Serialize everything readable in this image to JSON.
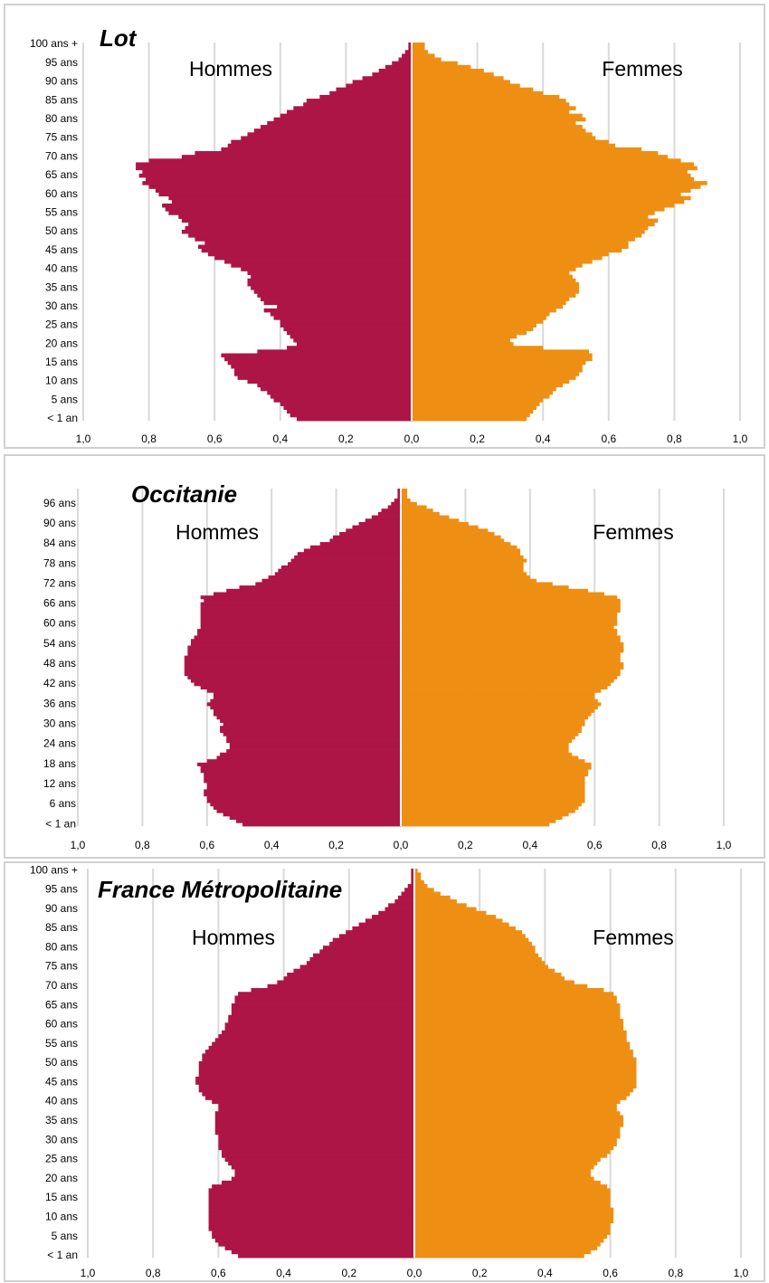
{
  "chart_data": [
    {
      "type": "pyramid",
      "title": "Lot",
      "categories": [
        "< 1 an",
        null,
        null,
        null,
        null,
        "5 ans",
        null,
        null,
        null,
        null,
        "10 ans",
        null,
        null,
        null,
        null,
        "15 ans",
        null,
        null,
        null,
        null,
        "20 ans",
        null,
        null,
        null,
        null,
        "25 ans",
        null,
        null,
        null,
        null,
        "30 ans",
        null,
        null,
        null,
        null,
        "35 ans",
        null,
        null,
        null,
        null,
        "40 ans",
        null,
        null,
        null,
        null,
        "45 ans",
        null,
        null,
        null,
        null,
        "50 ans",
        null,
        null,
        null,
        null,
        "55 ans",
        null,
        null,
        null,
        null,
        "60 ans",
        null,
        null,
        null,
        null,
        "65 ans",
        null,
        null,
        null,
        null,
        "70 ans",
        null,
        null,
        null,
        null,
        "75 ans",
        null,
        null,
        null,
        null,
        "80 ans",
        null,
        null,
        null,
        null,
        "85 ans",
        null,
        null,
        null,
        null,
        "90 ans",
        null,
        null,
        null,
        null,
        "95 ans",
        null,
        null,
        null,
        null,
        "100 ans +"
      ],
      "series": [
        {
          "name": "Hommes",
          "color": "#ad1547",
          "values": [
            0.35,
            0.37,
            0.38,
            0.39,
            0.4,
            0.42,
            0.43,
            0.44,
            0.46,
            0.47,
            0.5,
            0.53,
            0.54,
            0.54,
            0.55,
            0.56,
            0.57,
            0.58,
            0.47,
            0.38,
            0.35,
            0.36,
            0.37,
            0.38,
            0.39,
            0.4,
            0.4,
            0.42,
            0.43,
            0.45,
            0.41,
            0.45,
            0.46,
            0.47,
            0.48,
            0.49,
            0.5,
            0.5,
            0.49,
            0.5,
            0.52,
            0.55,
            0.57,
            0.6,
            0.62,
            0.64,
            0.65,
            0.63,
            0.66,
            0.68,
            0.7,
            0.69,
            0.68,
            0.7,
            0.71,
            0.74,
            0.75,
            0.76,
            0.73,
            0.74,
            0.77,
            0.78,
            0.8,
            0.82,
            0.81,
            0.83,
            0.82,
            0.84,
            0.84,
            0.8,
            0.7,
            0.66,
            0.58,
            0.56,
            0.55,
            0.52,
            0.5,
            0.48,
            0.46,
            0.44,
            0.42,
            0.4,
            0.38,
            0.36,
            0.33,
            0.32,
            0.28,
            0.25,
            0.23,
            0.2,
            0.18,
            0.15,
            0.12,
            0.1,
            0.08,
            0.06,
            0.04,
            0.03,
            0.02,
            0.01,
            0.01
          ]
        },
        {
          "name": "Femmes",
          "color": "#ee8f14",
          "values": [
            0.35,
            0.36,
            0.37,
            0.38,
            0.39,
            0.4,
            0.42,
            0.43,
            0.44,
            0.46,
            0.48,
            0.5,
            0.51,
            0.52,
            0.52,
            0.53,
            0.55,
            0.55,
            0.54,
            0.4,
            0.31,
            0.3,
            0.32,
            0.35,
            0.37,
            0.38,
            0.4,
            0.41,
            0.42,
            0.44,
            0.46,
            0.47,
            0.48,
            0.5,
            0.51,
            0.51,
            0.51,
            0.5,
            0.49,
            0.48,
            0.5,
            0.52,
            0.55,
            0.58,
            0.6,
            0.64,
            0.66,
            0.66,
            0.68,
            0.7,
            0.71,
            0.72,
            0.74,
            0.75,
            0.72,
            0.74,
            0.77,
            0.8,
            0.83,
            0.85,
            0.82,
            0.85,
            0.88,
            0.9,
            0.86,
            0.85,
            0.84,
            0.87,
            0.86,
            0.82,
            0.78,
            0.75,
            0.7,
            0.62,
            0.6,
            0.56,
            0.55,
            0.53,
            0.52,
            0.5,
            0.53,
            0.52,
            0.48,
            0.5,
            0.48,
            0.47,
            0.45,
            0.4,
            0.37,
            0.33,
            0.3,
            0.28,
            0.25,
            0.22,
            0.18,
            0.14,
            0.09,
            0.07,
            0.05,
            0.04,
            0.04
          ]
        }
      ],
      "xlim": [
        -1,
        1
      ],
      "xticks": [
        {
          "value": -1,
          "label": "1,0"
        },
        {
          "value": -0.8,
          "label": "0,8"
        },
        {
          "value": -0.6,
          "label": "0,6"
        },
        {
          "value": -0.4,
          "label": "0,4"
        },
        {
          "value": -0.2,
          "label": "0,2"
        },
        {
          "value": 0,
          "label": "0,0"
        },
        {
          "value": 0.2,
          "label": "0,2"
        },
        {
          "value": 0.4,
          "label": "0,4"
        },
        {
          "value": 0.6,
          "label": "0,6"
        },
        {
          "value": 0.8,
          "label": "0,8"
        },
        {
          "value": 1,
          "label": "1,0"
        }
      ],
      "grid": true
    },
    {
      "type": "pyramid",
      "title": "Occitanie",
      "categories": [
        "< 1 an",
        null,
        null,
        null,
        null,
        null,
        "6 ans",
        null,
        null,
        null,
        null,
        null,
        "12 ans",
        null,
        null,
        null,
        null,
        null,
        "18 ans",
        null,
        null,
        null,
        null,
        null,
        "24 ans",
        null,
        null,
        null,
        null,
        null,
        "30 ans",
        null,
        null,
        null,
        null,
        null,
        "36 ans",
        null,
        null,
        null,
        null,
        null,
        "42 ans",
        null,
        null,
        null,
        null,
        null,
        "48 ans",
        null,
        null,
        null,
        null,
        null,
        "54 ans",
        null,
        null,
        null,
        null,
        null,
        "60 ans",
        null,
        null,
        null,
        null,
        null,
        "66 ans",
        null,
        null,
        null,
        null,
        null,
        "72 ans",
        null,
        null,
        null,
        null,
        null,
        "78 ans",
        null,
        null,
        null,
        null,
        null,
        "84 ans",
        null,
        null,
        null,
        null,
        null,
        "90 ans",
        null,
        null,
        null,
        null,
        null,
        "96 ans",
        null,
        null,
        null,
        null
      ],
      "series": [
        {
          "name": "Hommes",
          "color": "#ad1547",
          "values": [
            0.49,
            0.51,
            0.53,
            0.55,
            0.57,
            0.58,
            0.59,
            0.6,
            0.6,
            0.61,
            0.61,
            0.6,
            0.6,
            0.61,
            0.61,
            0.61,
            0.62,
            0.62,
            0.63,
            0.6,
            0.57,
            0.56,
            0.54,
            0.53,
            0.53,
            0.54,
            0.54,
            0.55,
            0.56,
            0.56,
            0.55,
            0.56,
            0.57,
            0.58,
            0.58,
            0.59,
            0.6,
            0.59,
            0.58,
            0.58,
            0.6,
            0.62,
            0.64,
            0.65,
            0.66,
            0.67,
            0.67,
            0.67,
            0.67,
            0.67,
            0.67,
            0.66,
            0.66,
            0.66,
            0.65,
            0.65,
            0.64,
            0.63,
            0.63,
            0.62,
            0.62,
            0.62,
            0.62,
            0.62,
            0.62,
            0.62,
            0.62,
            0.61,
            0.62,
            0.58,
            0.54,
            0.5,
            0.45,
            0.43,
            0.41,
            0.39,
            0.38,
            0.37,
            0.35,
            0.34,
            0.33,
            0.32,
            0.3,
            0.28,
            0.25,
            0.22,
            0.21,
            0.19,
            0.17,
            0.15,
            0.13,
            0.11,
            0.09,
            0.07,
            0.06,
            0.04,
            0.03,
            0.02,
            0.01,
            0.01,
            0.01
          ]
        },
        {
          "name": "Femmes",
          "color": "#ee8f14",
          "values": [
            0.46,
            0.48,
            0.5,
            0.52,
            0.54,
            0.55,
            0.56,
            0.57,
            0.57,
            0.57,
            0.57,
            0.57,
            0.57,
            0.57,
            0.57,
            0.58,
            0.58,
            0.59,
            0.59,
            0.57,
            0.55,
            0.53,
            0.52,
            0.52,
            0.52,
            0.53,
            0.54,
            0.55,
            0.56,
            0.56,
            0.57,
            0.57,
            0.58,
            0.59,
            0.6,
            0.61,
            0.62,
            0.61,
            0.6,
            0.6,
            0.62,
            0.64,
            0.65,
            0.66,
            0.67,
            0.68,
            0.68,
            0.69,
            0.69,
            0.68,
            0.68,
            0.68,
            0.69,
            0.69,
            0.69,
            0.68,
            0.68,
            0.67,
            0.67,
            0.66,
            0.67,
            0.67,
            0.67,
            0.67,
            0.68,
            0.68,
            0.68,
            0.68,
            0.67,
            0.63,
            0.58,
            0.52,
            0.47,
            0.42,
            0.4,
            0.39,
            0.38,
            0.38,
            0.38,
            0.39,
            0.38,
            0.37,
            0.37,
            0.36,
            0.34,
            0.32,
            0.31,
            0.29,
            0.27,
            0.24,
            0.21,
            0.18,
            0.15,
            0.12,
            0.1,
            0.08,
            0.05,
            0.03,
            0.02,
            0.02,
            0.02
          ]
        }
      ],
      "xlim": [
        -1,
        1
      ],
      "xticks": [
        {
          "value": -1,
          "label": "1,0"
        },
        {
          "value": -0.8,
          "label": "0,8"
        },
        {
          "value": -0.6,
          "label": "0,6"
        },
        {
          "value": -0.4,
          "label": "0,4"
        },
        {
          "value": -0.2,
          "label": "0,2"
        },
        {
          "value": 0,
          "label": "0,0"
        },
        {
          "value": 0.2,
          "label": "0,2"
        },
        {
          "value": 0.4,
          "label": "0,4"
        },
        {
          "value": 0.6,
          "label": "0,6"
        },
        {
          "value": 0.8,
          "label": "0,8"
        },
        {
          "value": 1,
          "label": "1,0"
        }
      ],
      "grid": true
    },
    {
      "type": "pyramid",
      "title": "France Métropolitaine",
      "categories": [
        "< 1 an",
        null,
        null,
        null,
        null,
        "5 ans",
        null,
        null,
        null,
        null,
        "10 ans",
        null,
        null,
        null,
        null,
        "15 ans",
        null,
        null,
        null,
        null,
        "20 ans",
        null,
        null,
        null,
        null,
        "25 ans",
        null,
        null,
        null,
        null,
        "30 ans",
        null,
        null,
        null,
        null,
        "35 ans",
        null,
        null,
        null,
        null,
        "40 ans",
        null,
        null,
        null,
        null,
        "45 ans",
        null,
        null,
        null,
        null,
        "50 ans",
        null,
        null,
        null,
        null,
        "55 ans",
        null,
        null,
        null,
        null,
        "60 ans",
        null,
        null,
        null,
        null,
        "65 ans",
        null,
        null,
        null,
        null,
        "70 ans",
        null,
        null,
        null,
        null,
        "75 ans",
        null,
        null,
        null,
        null,
        "80 ans",
        null,
        null,
        null,
        null,
        "85 ans",
        null,
        null,
        null,
        null,
        "90 ans",
        null,
        null,
        null,
        null,
        "95 ans",
        null,
        null,
        null,
        null,
        "100 ans +"
      ],
      "series": [
        {
          "name": "Hommes",
          "color": "#ad1547",
          "values": [
            0.54,
            0.56,
            0.58,
            0.6,
            0.61,
            0.62,
            0.62,
            0.63,
            0.63,
            0.63,
            0.63,
            0.63,
            0.63,
            0.63,
            0.63,
            0.63,
            0.63,
            0.63,
            0.62,
            0.59,
            0.56,
            0.55,
            0.55,
            0.56,
            0.57,
            0.58,
            0.59,
            0.59,
            0.6,
            0.6,
            0.6,
            0.6,
            0.61,
            0.61,
            0.61,
            0.61,
            0.61,
            0.61,
            0.6,
            0.6,
            0.62,
            0.64,
            0.65,
            0.66,
            0.66,
            0.67,
            0.67,
            0.66,
            0.66,
            0.66,
            0.66,
            0.65,
            0.65,
            0.64,
            0.63,
            0.62,
            0.61,
            0.6,
            0.59,
            0.58,
            0.58,
            0.57,
            0.57,
            0.56,
            0.56,
            0.56,
            0.55,
            0.55,
            0.54,
            0.5,
            0.45,
            0.42,
            0.4,
            0.39,
            0.37,
            0.35,
            0.33,
            0.32,
            0.31,
            0.29,
            0.28,
            0.26,
            0.25,
            0.23,
            0.21,
            0.19,
            0.17,
            0.15,
            0.13,
            0.11,
            0.09,
            0.08,
            0.06,
            0.05,
            0.04,
            0.03,
            0.02,
            0.01,
            0.01,
            0.01,
            0.01
          ]
        },
        {
          "name": "Femmes",
          "color": "#ee8f14",
          "values": [
            0.52,
            0.54,
            0.56,
            0.57,
            0.58,
            0.59,
            0.6,
            0.6,
            0.6,
            0.61,
            0.61,
            0.61,
            0.61,
            0.6,
            0.6,
            0.6,
            0.6,
            0.6,
            0.59,
            0.57,
            0.55,
            0.54,
            0.54,
            0.55,
            0.56,
            0.57,
            0.59,
            0.6,
            0.61,
            0.62,
            0.62,
            0.63,
            0.63,
            0.63,
            0.64,
            0.64,
            0.64,
            0.63,
            0.62,
            0.62,
            0.63,
            0.65,
            0.66,
            0.67,
            0.68,
            0.68,
            0.68,
            0.68,
            0.68,
            0.68,
            0.68,
            0.68,
            0.67,
            0.67,
            0.66,
            0.66,
            0.65,
            0.65,
            0.65,
            0.64,
            0.64,
            0.64,
            0.63,
            0.63,
            0.63,
            0.63,
            0.62,
            0.62,
            0.61,
            0.58,
            0.53,
            0.49,
            0.46,
            0.45,
            0.43,
            0.41,
            0.4,
            0.39,
            0.38,
            0.37,
            0.37,
            0.36,
            0.35,
            0.34,
            0.33,
            0.31,
            0.29,
            0.27,
            0.25,
            0.22,
            0.19,
            0.16,
            0.13,
            0.11,
            0.08,
            0.06,
            0.04,
            0.03,
            0.02,
            0.02,
            0.01
          ]
        }
      ],
      "xlim": [
        -1,
        1
      ],
      "xticks": [
        {
          "value": -1,
          "label": "1,0"
        },
        {
          "value": -0.8,
          "label": "0,8"
        },
        {
          "value": -0.6,
          "label": "0,6"
        },
        {
          "value": -0.4,
          "label": "0,4"
        },
        {
          "value": -0.2,
          "label": "0,2"
        },
        {
          "value": 0,
          "label": "0,0"
        },
        {
          "value": 0.2,
          "label": "0,2"
        },
        {
          "value": 0.4,
          "label": "0,4"
        },
        {
          "value": 0.6,
          "label": "0,6"
        },
        {
          "value": 0.8,
          "label": "0,8"
        },
        {
          "value": 1,
          "label": "1,0"
        }
      ],
      "grid": true
    }
  ]
}
